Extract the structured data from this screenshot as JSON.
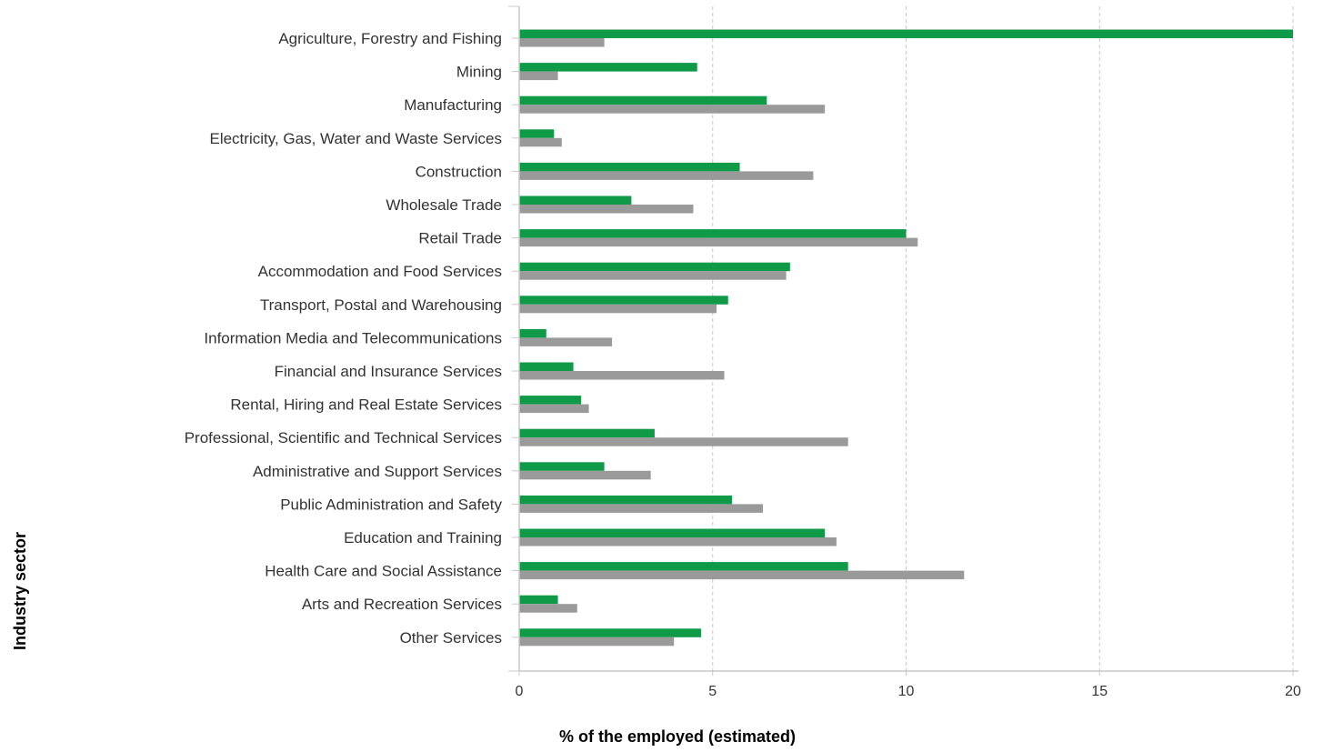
{
  "chart_data": {
    "type": "bar",
    "orientation": "horizontal",
    "xlabel": "% of the employed (estimated)",
    "ylabel": "Industry sector",
    "xlim": [
      0,
      20
    ],
    "xticks": [
      0,
      5,
      10,
      15,
      20
    ],
    "grid": true,
    "categories": [
      "Agriculture, Forestry and Fishing",
      "Mining",
      "Manufacturing",
      "Electricity, Gas, Water and Waste Services",
      "Construction",
      "Wholesale Trade",
      "Retail Trade",
      "Accommodation and Food Services",
      "Transport, Postal and Warehousing",
      "Information Media and Telecommunications",
      "Financial and Insurance Services",
      "Rental, Hiring and Real Estate Services",
      "Professional, Scientific and Technical Services",
      "Administrative and Support Services",
      "Public Administration and Safety",
      "Education and Training",
      "Health Care and Social Assistance",
      "Arts and Recreation Services",
      "Other Services"
    ],
    "series": [
      {
        "color": "#0f9a48",
        "values": [
          20.0,
          4.6,
          6.4,
          0.9,
          5.7,
          2.9,
          10.0,
          7.0,
          5.4,
          0.7,
          1.4,
          1.6,
          3.5,
          2.2,
          5.5,
          7.9,
          8.5,
          1.0,
          4.7
        ]
      },
      {
        "color": "#9a9a9a",
        "values": [
          2.2,
          1.0,
          7.9,
          1.1,
          7.6,
          4.5,
          10.3,
          6.9,
          5.1,
          2.4,
          5.3,
          1.8,
          8.5,
          3.4,
          6.3,
          8.2,
          11.5,
          1.5,
          4.0
        ]
      }
    ]
  }
}
